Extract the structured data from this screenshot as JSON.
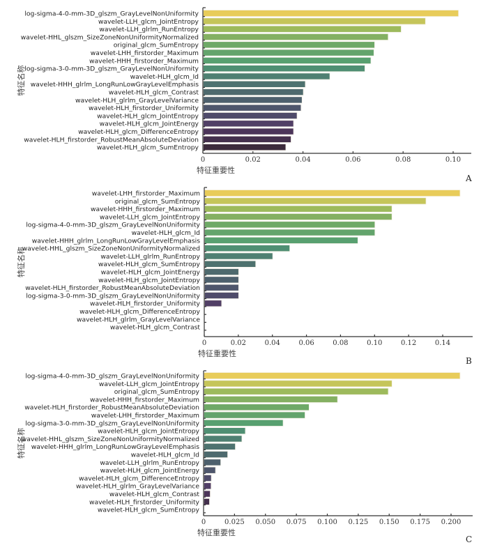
{
  "chart_data": [
    {
      "type": "bar",
      "orientation": "horizontal",
      "panel": "A",
      "xlabel": "特征重要性",
      "ylabel": "特征名称",
      "xlim": [
        0,
        0.107
      ],
      "xticks": [
        0,
        0.02,
        0.04,
        0.06,
        0.08,
        0.1
      ],
      "xtick_labels": [
        "0",
        "0.02",
        "0.04",
        "0.06",
        "0.08",
        "0.10"
      ],
      "grid": false,
      "categories": [
        "log-sigma-4-0-mm-3D_glszm_GrayLevelNonUniformity",
        "wavelet-LLH_glcm_JointEntropy",
        "wavelet-LLH_glrlm_RunEntropy",
        "wavelet-HHL_glszm_SizeZoneNonUniformityNormalized",
        "original_glcm_SumEntropy",
        "wavelet-LHH_firstorder_Maximum",
        "wavelet-HHH_firstorder_Maximum",
        "log-sigma-3-0-mm-3D_glszm_GrayLevelNonUniformity",
        "wavelet-HLH_glcm_Id",
        "wavelet-HHH_glrlm_LongRunLowGrayLevelEmphasis",
        "wavelet-HLH_glcm_Contrast",
        "wavelet-HLH_glrlm_GrayLevelVariance",
        "wavelet-HLH_firstorder_Uniformity",
        "wavelet-HLH_glcm_JointEntropy",
        "wavelet-HLH_glcm_JointEnergy",
        "wavelet-HLH_glcm_DifferenceEntropy",
        "wavelet-HLH_firstorder_RobustMeanAbsoluteDeviation",
        "wavelet-HLH_glcm_SumEntropy"
      ],
      "values": [
        0.102,
        0.0888,
        0.0791,
        0.0739,
        0.0685,
        0.0682,
        0.067,
        0.0646,
        0.0506,
        0.0408,
        0.04,
        0.0395,
        0.0391,
        0.0375,
        0.0361,
        0.0361,
        0.0351,
        0.033
      ]
    },
    {
      "type": "bar",
      "orientation": "horizontal",
      "panel": "B",
      "xlabel": "特征重要性",
      "ylabel": "特征名称",
      "xlim": [
        0,
        0.158
      ],
      "xticks": [
        0,
        0.02,
        0.04,
        0.06,
        0.08,
        0.1,
        0.12,
        0.14
      ],
      "xtick_labels": [
        "0",
        "0.02",
        "0.04",
        "0.06",
        "0.08",
        "0.10",
        "0.12",
        "0.14"
      ],
      "grid": false,
      "categories": [
        "wavelet-LHH_firstorder_Maximum",
        "original_glcm_SumEntropy",
        "wavelet-HHH_firstorder_Maximum",
        "wavelet-LLH_glcm_JointEntropy",
        "log-sigma-4-0-mm-3D_glszm_GrayLevelNonUniformity",
        "wavelet-HLH_glcm_Id",
        "wavelet-HHH_glrlm_LongRunLowGrayLevelEmphasis",
        "wavelet-HHL_glszm_SizeZoneNonUniformityNormalized",
        "wavelet-LLH_glrlm_RunEntropy",
        "wavelet-HLH_glcm_SumEntropy",
        "wavelet-HLH_glcm_JointEnergy",
        "wavelet-HLH_glcm_JointEntropy",
        "wavelet-HLH_firstorder_RobustMeanAbsoluteDeviation",
        "log-sigma-3-0-mm-3D_glszm_GrayLevelNonUniformity",
        "wavelet-HLH_firstorder_Uniformity",
        "wavelet-HLH_glcm_DifferenceEntropy",
        "wavelet-HLH_glrlm_GrayLevelVariance",
        "wavelet-HLH_glcm_Contrast"
      ],
      "values": [
        0.15,
        0.13,
        0.11,
        0.11,
        0.1,
        0.1,
        0.09,
        0.05,
        0.04,
        0.03,
        0.02,
        0.02,
        0.02,
        0.02,
        0.01,
        0,
        0,
        0
      ]
    },
    {
      "type": "bar",
      "orientation": "horizontal",
      "panel": "C",
      "xlabel": "特征重要性",
      "ylabel": "特征名称",
      "xlim": [
        0,
        0.218
      ],
      "xticks": [
        0,
        0.025,
        0.05,
        0.075,
        0.1,
        0.125,
        0.15,
        0.175,
        0.2
      ],
      "xtick_labels": [
        "0",
        "0.025",
        "0.050",
        "0.075",
        "0.100",
        "0.125",
        "0.150",
        "0.175",
        "0.200"
      ],
      "grid": false,
      "categories": [
        "log-sigma-4-0-mm-3D_glszm_GrayLevelNonUniformity",
        "wavelet-LLH_glcm_JointEntropy",
        "original_glcm_SumEntropy",
        "wavelet-HHH_firstorder_Maximum",
        "wavelet-HLH_firstorder_RobustMeanAbsoluteDeviation",
        "wavelet-LHH_firstorder_Maximum",
        "log-sigma-3-0-mm-3D_glszm_GrayLevelNonUniformity",
        "wavelet-HLH_glcm_JointEntropy",
        "wavelet-HHL_glszm_SizeZoneNonUniformityNormalized",
        "wavelet-HHH_glrlm_LongRunLowGrayLevelEmphasis",
        "wavelet-HLH_glcm_Id",
        "wavelet-LLH_glrlm_RunEntropy",
        "wavelet-HLH_glcm_JointEnergy",
        "wavelet-HLH_glcm_DifferenceEntropy",
        "wavelet-HLH_glrlm_GrayLevelVariance",
        "wavelet-HLH_glcm_Contrast",
        "wavelet-HLH_firstorder_Uniformity",
        "wavelet-HLH_glcm_SumEntropy"
      ],
      "values": [
        0.207,
        0.152,
        0.149,
        0.108,
        0.085,
        0.0817,
        0.064,
        0.0335,
        0.0307,
        0.0254,
        0.0192,
        0.0136,
        0.0094,
        0.006,
        0.0058,
        0.0051,
        0.0045,
        0
      ]
    }
  ],
  "palette": [
    "#e8cc5a",
    "#c5c55a",
    "#9dba5c",
    "#84b062",
    "#6ea967",
    "#63a46c",
    "#58a070",
    "#4f8f73",
    "#4f8072",
    "#4e726f",
    "#4e6a6e",
    "#4d606d",
    "#4e566c",
    "#4f4b6a",
    "#513f66",
    "#4c355a",
    "#44304d",
    "#3c2b3c"
  ]
}
